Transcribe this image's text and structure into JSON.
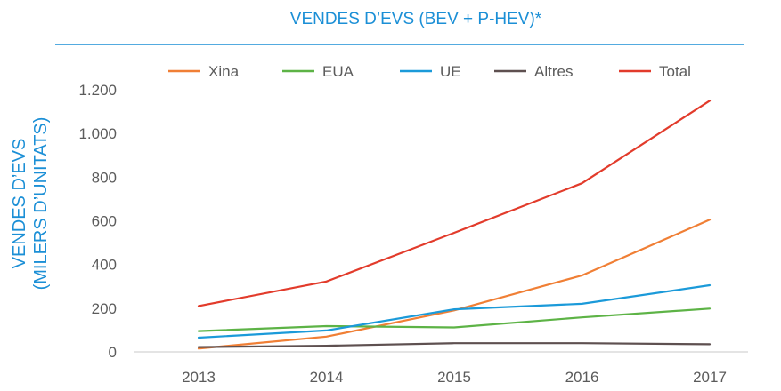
{
  "chart_data": {
    "type": "line",
    "title": "VENDES D’EVS (BEV + P-HEV)*",
    "ylabel_lines": [
      "VENDES D’EVS",
      "(MILERS D’UNITATS)"
    ],
    "xlabel": "",
    "categories": [
      "2013",
      "2014",
      "2015",
      "2016",
      "2017"
    ],
    "ylim": [
      0,
      1200
    ],
    "yticks": [
      0,
      200,
      400,
      600,
      800,
      1000,
      1200
    ],
    "ytick_labels": [
      "0",
      "200",
      "400",
      "600",
      "800",
      "1.000",
      "1.200"
    ],
    "grid": false,
    "legend_position": "top",
    "series": [
      {
        "name": "Xina",
        "color": "#f07f35",
        "values": [
          15,
          70,
          190,
          350,
          605
        ]
      },
      {
        "name": "EUA",
        "color": "#5db346",
        "values": [
          95,
          118,
          112,
          158,
          198
        ]
      },
      {
        "name": "UE",
        "color": "#1b9ad9",
        "values": [
          65,
          98,
          195,
          220,
          305
        ]
      },
      {
        "name": "Altres",
        "color": "#5e5050",
        "values": [
          22,
          28,
          40,
          40,
          35
        ]
      },
      {
        "name": "Total",
        "color": "#e23b2b",
        "values": [
          210,
          322,
          545,
          772,
          1150
        ]
      }
    ]
  }
}
